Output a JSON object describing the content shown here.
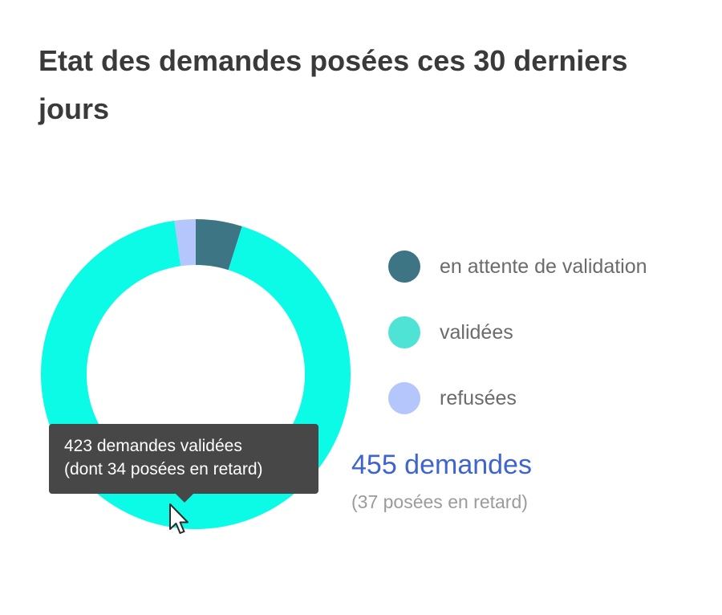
{
  "widget": {
    "title": "Etat des demandes posées ces 30 derniers jours",
    "total_label": "455 demandes",
    "late_label": "(37 posées en retard)"
  },
  "tooltip": {
    "line1": "423 demandes validées",
    "line2": "(dont 34 posées en retard)"
  },
  "chart_data": {
    "type": "pie",
    "donut": true,
    "total": 455,
    "late_total": 37,
    "slices": [
      {
        "label": "en attente de validation",
        "value": 22,
        "color": "#3e7585",
        "legend_color": "#3e7585",
        "icon": "legend-dot"
      },
      {
        "label": "validées",
        "value": 423,
        "color": "#0cfbe6",
        "legend_color": "#4fe3d6",
        "icon": "legend-dot",
        "late": 34
      },
      {
        "label": "refusées",
        "value": 10,
        "color": "#b4c6fb",
        "legend_color": "#b4c6fb",
        "icon": "legend-dot"
      }
    ],
    "legend_position": "right"
  },
  "icons": {
    "pointer": "mouse-pointer-icon"
  }
}
